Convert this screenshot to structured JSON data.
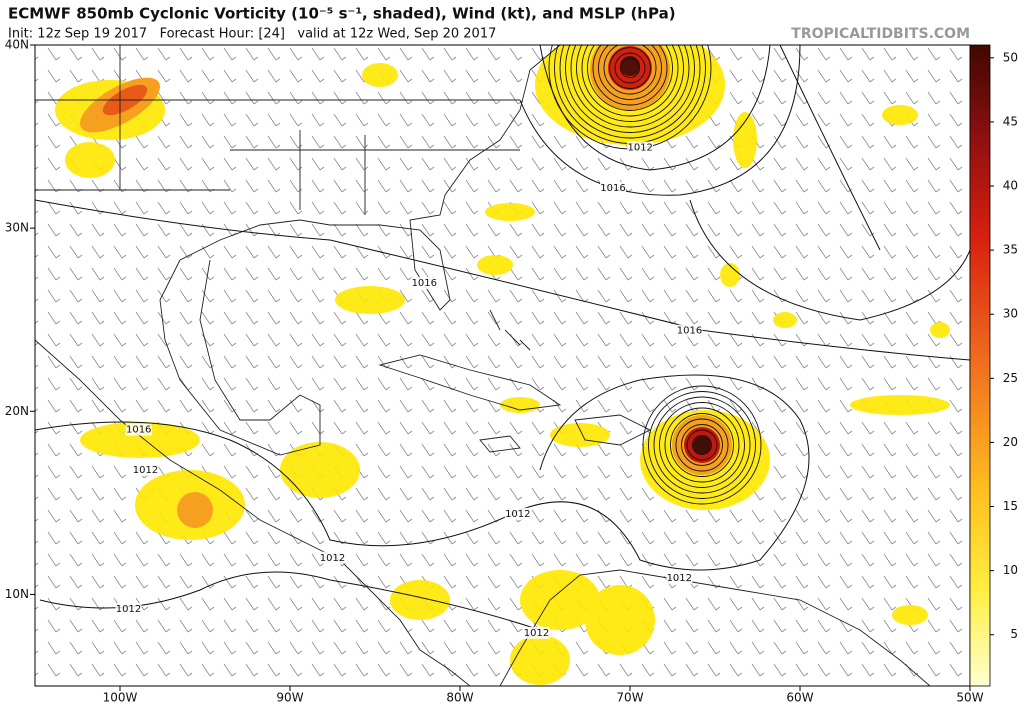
{
  "chart_data": {
    "type": "map",
    "title": "ECMWF 850mb Cyclonic Vorticity (10⁻⁵ s⁻¹, shaded), Wind (kt), and MSLP (hPa)",
    "subtitle": "Init: 12z Sep 19 2017   Forecast Hour: [24]   valid at 12z Wed, Sep 20 2017",
    "credit": "TROPICALTIDBITS.COM",
    "xlim": [
      -105,
      -50
    ],
    "ylim": [
      5,
      40
    ],
    "xticks": [
      {
        "value": -100,
        "label": "100W"
      },
      {
        "value": -90,
        "label": "90W"
      },
      {
        "value": -80,
        "label": "80W"
      },
      {
        "value": -70,
        "label": "70W"
      },
      {
        "value": -60,
        "label": "60W"
      },
      {
        "value": -50,
        "label": "50W"
      }
    ],
    "yticks": [
      {
        "value": 10,
        "label": "10N"
      },
      {
        "value": 20,
        "label": "20N"
      },
      {
        "value": 30,
        "label": "30N"
      },
      {
        "value": 40,
        "label": "40N"
      }
    ],
    "colorbar": {
      "lim": [
        1,
        51
      ],
      "ticks": [
        5,
        10,
        15,
        20,
        25,
        30,
        35,
        40,
        45,
        50
      ]
    },
    "contour_labels": [
      {
        "value": 1012,
        "lon": -69.4,
        "lat": 34.4
      },
      {
        "value": 1016,
        "lon": -71,
        "lat": 32.2
      },
      {
        "value": 1016,
        "lon": -82.1,
        "lat": 27.0
      },
      {
        "value": 1016,
        "lon": -66.5,
        "lat": 24.4
      },
      {
        "value": 1016,
        "lon": -98.9,
        "lat": 19.0
      },
      {
        "value": 1012,
        "lon": -98.5,
        "lat": 16.8
      },
      {
        "value": 1012,
        "lon": -76.6,
        "lat": 14.4
      },
      {
        "value": 1012,
        "lon": -87.5,
        "lat": 12.0
      },
      {
        "value": 1012,
        "lon": -67.1,
        "lat": 10.9
      },
      {
        "value": 1012,
        "lon": -99.5,
        "lat": 9.2
      },
      {
        "value": 1012,
        "lon": -75.5,
        "lat": 7.9
      }
    ]
  }
}
